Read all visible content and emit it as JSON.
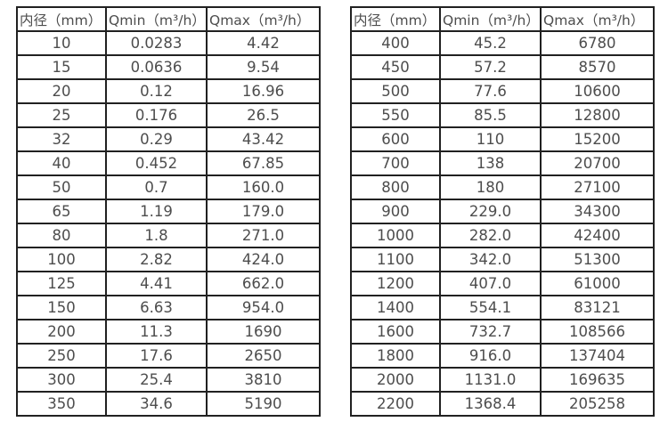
{
  "colors": {
    "background": "#ffffff",
    "table_border": "#212121",
    "table_text": "#4d4d4d"
  },
  "chart_data": [
    {
      "type": "table",
      "columns": [
        "内径（mm）",
        "Qmin（m³/h）",
        "Qmax（m³/h）"
      ],
      "rows": [
        [
          "10",
          "0.0283",
          "4.42"
        ],
        [
          "15",
          "0.0636",
          "9.54"
        ],
        [
          "20",
          "0.12",
          "16.96"
        ],
        [
          "25",
          "0.176",
          "26.5"
        ],
        [
          "32",
          "0.29",
          "43.42"
        ],
        [
          "40",
          "0.452",
          "67.85"
        ],
        [
          "50",
          "0.7",
          "160.0"
        ],
        [
          "65",
          "1.19",
          "179.0"
        ],
        [
          "80",
          "1.8",
          "271.0"
        ],
        [
          "100",
          "2.82",
          "424.0"
        ],
        [
          "125",
          "4.41",
          "662.0"
        ],
        [
          "150",
          "6.63",
          "954.0"
        ],
        [
          "200",
          "11.3",
          "1690"
        ],
        [
          "250",
          "17.6",
          "2650"
        ],
        [
          "300",
          "25.4",
          "3810"
        ],
        [
          "350",
          "34.6",
          "5190"
        ]
      ]
    },
    {
      "type": "table",
      "columns": [
        "内径（mm）",
        "Qmin（m³/h）",
        "Qmax（m³/h）"
      ],
      "rows": [
        [
          "400",
          "45.2",
          "6780"
        ],
        [
          "450",
          "57.2",
          "8570"
        ],
        [
          "500",
          "77.6",
          "10600"
        ],
        [
          "550",
          "85.5",
          "12800"
        ],
        [
          "600",
          "110",
          "15200"
        ],
        [
          "700",
          "138",
          "20700"
        ],
        [
          "800",
          "180",
          "27100"
        ],
        [
          "900",
          "229.0",
          "34300"
        ],
        [
          "1000",
          "282.0",
          "42400"
        ],
        [
          "1100",
          "342.0",
          "51300"
        ],
        [
          "1200",
          "407.0",
          "61000"
        ],
        [
          "1400",
          "554.1",
          "83121"
        ],
        [
          "1600",
          "732.7",
          "108566"
        ],
        [
          "1800",
          "916.0",
          "137404"
        ],
        [
          "2000",
          "1131.0",
          "169635"
        ],
        [
          "2200",
          "1368.4",
          "205258"
        ]
      ]
    }
  ]
}
